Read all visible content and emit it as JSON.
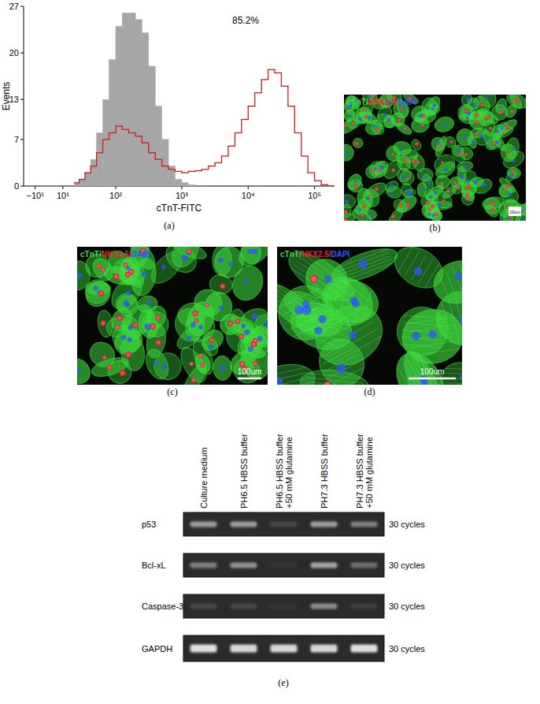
{
  "chart_data": {
    "type": "histogram",
    "panel": "(a)",
    "x_label": "cTnT-FITC",
    "y_label": "Events",
    "annotation": "85.2%",
    "log": "x",
    "grid": false,
    "xlim": [
      -20,
      200000
    ],
    "xticks": [
      {
        "value": -10,
        "label": "−10¹"
      },
      {
        "value": 10,
        "label": "10¹"
      },
      {
        "value": 100,
        "label": "10²"
      },
      {
        "value": 1000,
        "label": "10³"
      },
      {
        "value": 10000,
        "label": "10⁴"
      },
      {
        "value": 100000,
        "label": "10⁵"
      }
    ],
    "ylim": [
      0,
      27
    ],
    "yticks": [
      0,
      7,
      13,
      20,
      27
    ],
    "bins": [
      20,
      25,
      32,
      40,
      50,
      63,
      79,
      100,
      126,
      158,
      200,
      251,
      316,
      398,
      501,
      631,
      794,
      1000,
      1259,
      1585,
      1995,
      2512,
      3162,
      3981,
      5012,
      6310,
      7943,
      10000,
      12589,
      15849,
      19953,
      25119,
      31623,
      39811,
      50119,
      63096,
      79433,
      100000,
      125893,
      158489,
      199526
    ],
    "series": [
      {
        "type": "area",
        "color": "#a6a6a6",
        "values": [
          0.5,
          1,
          2,
          4,
          8,
          13,
          19,
          24,
          26,
          26,
          25,
          23,
          18,
          12,
          7,
          3,
          1,
          0.5,
          0.2,
          0,
          0,
          0,
          0,
          0,
          0,
          0,
          0,
          0,
          0,
          0,
          0,
          0,
          0,
          0,
          0,
          0,
          0,
          0,
          0,
          0
        ]
      },
      {
        "type": "line",
        "color": "#cc1f1f",
        "values": [
          0.5,
          1,
          2,
          3,
          5,
          7,
          8,
          9,
          8.5,
          8,
          7.5,
          6.5,
          5,
          4,
          3,
          2.5,
          2.2,
          2,
          2.2,
          2.3,
          2.5,
          3,
          3.5,
          4.5,
          6,
          8,
          10,
          12,
          14,
          16,
          17.5,
          17,
          15,
          12,
          8,
          4.5,
          2,
          0.8,
          0.2,
          0
        ]
      }
    ]
  },
  "images": [
    {
      "panel": "(b)",
      "channels": [
        {
          "name": "cTnT",
          "color": "#3ddc3d"
        },
        {
          "name": "NKX2.5",
          "color": "#e8262b"
        },
        {
          "name": "DAPI",
          "color": "#2f55ff"
        }
      ],
      "separator": "/",
      "scale_bar": "100um"
    },
    {
      "panel": "(c)",
      "channels": [
        {
          "name": "cTnT",
          "color": "#3ddc3d"
        },
        {
          "name": "NKX2.5",
          "color": "#e8262b"
        },
        {
          "name": "DAPI",
          "color": "#2f55ff"
        }
      ],
      "separator": "/",
      "scale_bar": "100um"
    },
    {
      "panel": "(d)",
      "channels": [
        {
          "name": "cTnT",
          "color": "#3ddc3d"
        },
        {
          "name": "NKX2.5",
          "color": "#e8262b"
        },
        {
          "name": "DAPI",
          "color": "#2f55ff"
        }
      ],
      "separator": "/",
      "scale_bar": "100um"
    }
  ],
  "gel": {
    "panel": "(e)",
    "lanes": [
      [
        "Culture medium"
      ],
      [
        "PH6.5 HBSS buffer"
      ],
      [
        "PH6.5 HBSS buffer",
        "+50 mM glutamine"
      ],
      [
        "PH7.3 HBSS buffer"
      ],
      [
        "PH7.3 HBSS buffer",
        "+50 mM glutamine"
      ]
    ],
    "rows": [
      {
        "name": "p53",
        "cycles": "30 cycles",
        "intensities": [
          0.6,
          0.6,
          0.15,
          0.6,
          0.45
        ]
      },
      {
        "name": "Bcl-xL",
        "cycles": "30 cycles",
        "intensities": [
          0.45,
          0.55,
          0.05,
          0.65,
          0.35
        ]
      },
      {
        "name": "Caspase-3",
        "cycles": "30 cycles",
        "intensities": [
          0.15,
          0.15,
          0.05,
          0.5,
          0.1
        ]
      },
      {
        "name": "GAPDH",
        "cycles": "30 cycles",
        "intensities": [
          0.95,
          0.9,
          0.9,
          0.9,
          0.95
        ]
      }
    ]
  }
}
